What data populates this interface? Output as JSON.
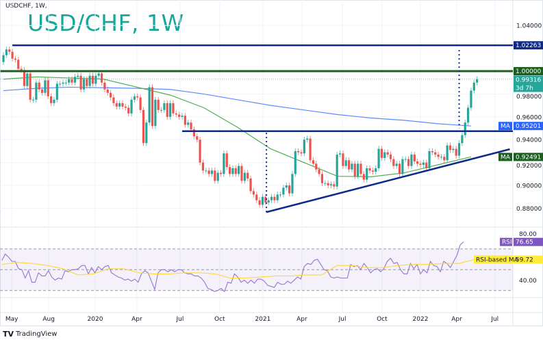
{
  "header": {
    "symbol_line": "USDCHF, 1W,",
    "overlay_title": "USD/CHF, 1W"
  },
  "footer": {
    "logo_text": "TradingView"
  },
  "colors": {
    "up": "#26a69a",
    "down": "#ef5350",
    "ma_fast": "#4caf50",
    "ma_slow": "#5b8cff",
    "navy_line": "#0d2a8a",
    "parity_line": "#1b5e20",
    "rsi": "#9575cd",
    "rsi_ma": "#fdd835",
    "title": "#1aa59a"
  },
  "chart_data": [
    {
      "type": "candlestick",
      "title": "USD/CHF, 1W",
      "interval": "1W",
      "ylim": [
        0.8635,
        1.0623
      ],
      "grid": true,
      "x_ticks": [
        {
          "label": "May",
          "week": 2.8
        },
        {
          "label": "Aug",
          "week": 15.2
        },
        {
          "label": "2020",
          "week": 30.8
        },
        {
          "label": "Apr",
          "week": 44.8
        },
        {
          "label": "Jul",
          "week": 59.3
        },
        {
          "label": "Oct",
          "week": 72.6
        },
        {
          "label": "2021",
          "week": 87.1
        },
        {
          "label": "Apr",
          "week": 100.2
        },
        {
          "label": "Jul",
          "week": 113.8
        },
        {
          "label": "Oct",
          "week": 127.1
        },
        {
          "label": "2022",
          "week": 140
        },
        {
          "label": "Apr",
          "week": 152.2
        },
        {
          "label": "Jul",
          "week": 165
        }
      ],
      "y_ticks": [
        "1.04000",
        "0.98000",
        "0.96000",
        "0.94000",
        "0.92000",
        "0.90000",
        "0.88000"
      ],
      "first_open": 1.008,
      "closes": [
        1.014,
        1.019,
        1.017,
        1.011,
        1.01,
        1.002,
        1.001,
        0.987,
        0.998,
        0.975,
        0.975,
        0.99,
        0.984,
        0.981,
        0.992,
        0.978,
        0.972,
        0.975,
        0.989,
        0.989,
        0.99,
        0.99,
        0.993,
        0.99,
        0.995,
        0.996,
        0.984,
        0.993,
        0.987,
        0.996,
        0.989,
        0.996,
        0.998,
        0.99,
        0.984,
        0.981,
        0.977,
        0.972,
        0.969,
        0.972,
        0.969,
        0.968,
        0.963,
        0.975,
        0.978,
        0.977,
        0.966,
        0.937,
        0.955,
        0.986,
        0.952,
        0.975,
        0.966,
        0.966,
        0.972,
        0.96,
        0.972,
        0.963,
        0.962,
        0.96,
        0.961,
        0.953,
        0.955,
        0.949,
        0.943,
        0.94,
        0.92,
        0.913,
        0.913,
        0.91,
        0.913,
        0.904,
        0.911,
        0.91,
        0.928,
        0.916,
        0.91,
        0.915,
        0.91,
        0.917,
        0.904,
        0.911,
        0.906,
        0.895,
        0.892,
        0.887,
        0.883,
        0.89,
        0.885,
        0.887,
        0.89,
        0.887,
        0.892,
        0.892,
        0.898,
        0.9,
        0.893,
        0.91,
        0.93,
        0.929,
        0.928,
        0.94,
        0.941,
        0.922,
        0.919,
        0.914,
        0.91,
        0.902,
        0.902,
        0.9,
        0.901,
        0.899,
        0.927,
        0.928,
        0.917,
        0.922,
        0.914,
        0.919,
        0.908,
        0.919,
        0.91,
        0.905,
        0.915,
        0.913,
        0.912,
        0.915,
        0.932,
        0.924,
        0.929,
        0.927,
        0.923,
        0.917,
        0.919,
        0.91,
        0.923,
        0.923,
        0.917,
        0.927,
        0.921,
        0.919,
        0.918,
        0.92,
        0.915,
        0.93,
        0.929,
        0.927,
        0.925,
        0.925,
        0.922,
        0.935,
        0.931,
        0.932,
        0.926,
        0.937,
        0.944,
        0.955,
        0.968,
        0.983,
        0.99,
        0.993
      ],
      "moving_averages": [
        {
          "label": "MA",
          "value": "0.95201",
          "color": "#5b8cff",
          "values": [
            0.983,
            0.985,
            0.986,
            0.9855,
            0.985,
            0.984,
            0.98,
            0.975,
            0.97,
            0.966,
            0.962,
            0.959,
            0.957,
            0.954,
            0.952
          ]
        },
        {
          "label": "MA",
          "value": "0.92491",
          "color": "#4caf50",
          "values": [
            0.993,
            0.995,
            0.994,
            0.993,
            0.986,
            0.979,
            0.968,
            0.951,
            0.932,
            0.92,
            0.908,
            0.9075,
            0.911,
            0.918,
            0.925
          ]
        }
      ],
      "horizontal_levels": [
        {
          "price": 1.02263,
          "label": "1.02263",
          "color": "#0d2a8a",
          "from_week": 3
        },
        {
          "price": 1.0,
          "label": "1.00000",
          "color": "#1b5e20",
          "from_week": -1
        },
        {
          "price": 0.9475,
          "color": "#0d2a8a",
          "from_week": 60
        }
      ],
      "trend_line": {
        "from": [
          88.3,
          0.8766
        ],
        "to": [
          170,
          0.9317
        ],
        "color": "#0d2a8a"
      },
      "vertical_markers": [
        {
          "week": 88.3,
          "from": 0.8766,
          "to": 0.9475
        },
        {
          "week": 153,
          "from": 1.0185,
          "to": 0.95
        }
      ],
      "last_price": {
        "value": "0.99316",
        "countdown": "3d 7h",
        "price": 0.99316
      }
    },
    {
      "type": "line",
      "ylim": [
        24.6,
        90.9
      ],
      "bands": [
        70,
        50,
        30
      ],
      "y_ticks": [
        "80.00",
        "40.00"
      ],
      "series": [
        {
          "name": "RSI",
          "value": "76.65",
          "color": "#9575cd",
          "values": [
            59,
            65,
            62,
            58,
            58,
            51,
            50,
            42,
            49,
            38,
            38,
            47,
            44,
            44,
            49,
            43,
            40,
            42,
            41,
            49,
            48,
            50,
            50,
            51,
            54,
            54,
            46,
            52,
            47,
            53,
            50,
            53,
            54,
            47,
            45,
            43,
            42,
            40,
            41,
            39,
            41,
            38,
            46,
            49,
            47,
            39,
            31,
            47,
            50,
            50,
            48,
            50,
            48,
            50,
            50,
            47,
            46,
            46,
            44,
            44,
            42,
            38,
            32,
            31,
            29,
            30,
            32,
            29,
            38,
            37,
            46,
            43,
            38,
            40,
            37,
            40,
            37,
            41,
            41,
            39,
            35,
            34,
            33,
            38,
            36,
            36,
            39,
            37,
            40,
            43,
            41,
            53,
            56,
            55,
            59,
            60,
            55,
            50,
            49,
            43,
            42,
            43,
            42,
            42,
            42,
            55,
            53,
            54,
            50,
            56,
            52,
            47,
            50,
            51,
            48,
            51,
            58,
            61,
            56,
            57,
            50,
            46,
            46,
            56,
            51,
            55,
            46,
            50,
            47,
            58,
            54,
            53,
            48,
            58,
            56,
            52,
            58,
            64,
            74,
            76.65
          ]
        },
        {
          "name": "RSI-based MA",
          "value": "59.72",
          "color": "#fdd835",
          "values": [
            55,
            57,
            56,
            54,
            51,
            45,
            46,
            51,
            51,
            47,
            46,
            46,
            47,
            47,
            46,
            42,
            42,
            43,
            44,
            44,
            45,
            45,
            54,
            54,
            52,
            52,
            54,
            55,
            55,
            56,
            56,
            59.72
          ]
        }
      ]
    }
  ]
}
